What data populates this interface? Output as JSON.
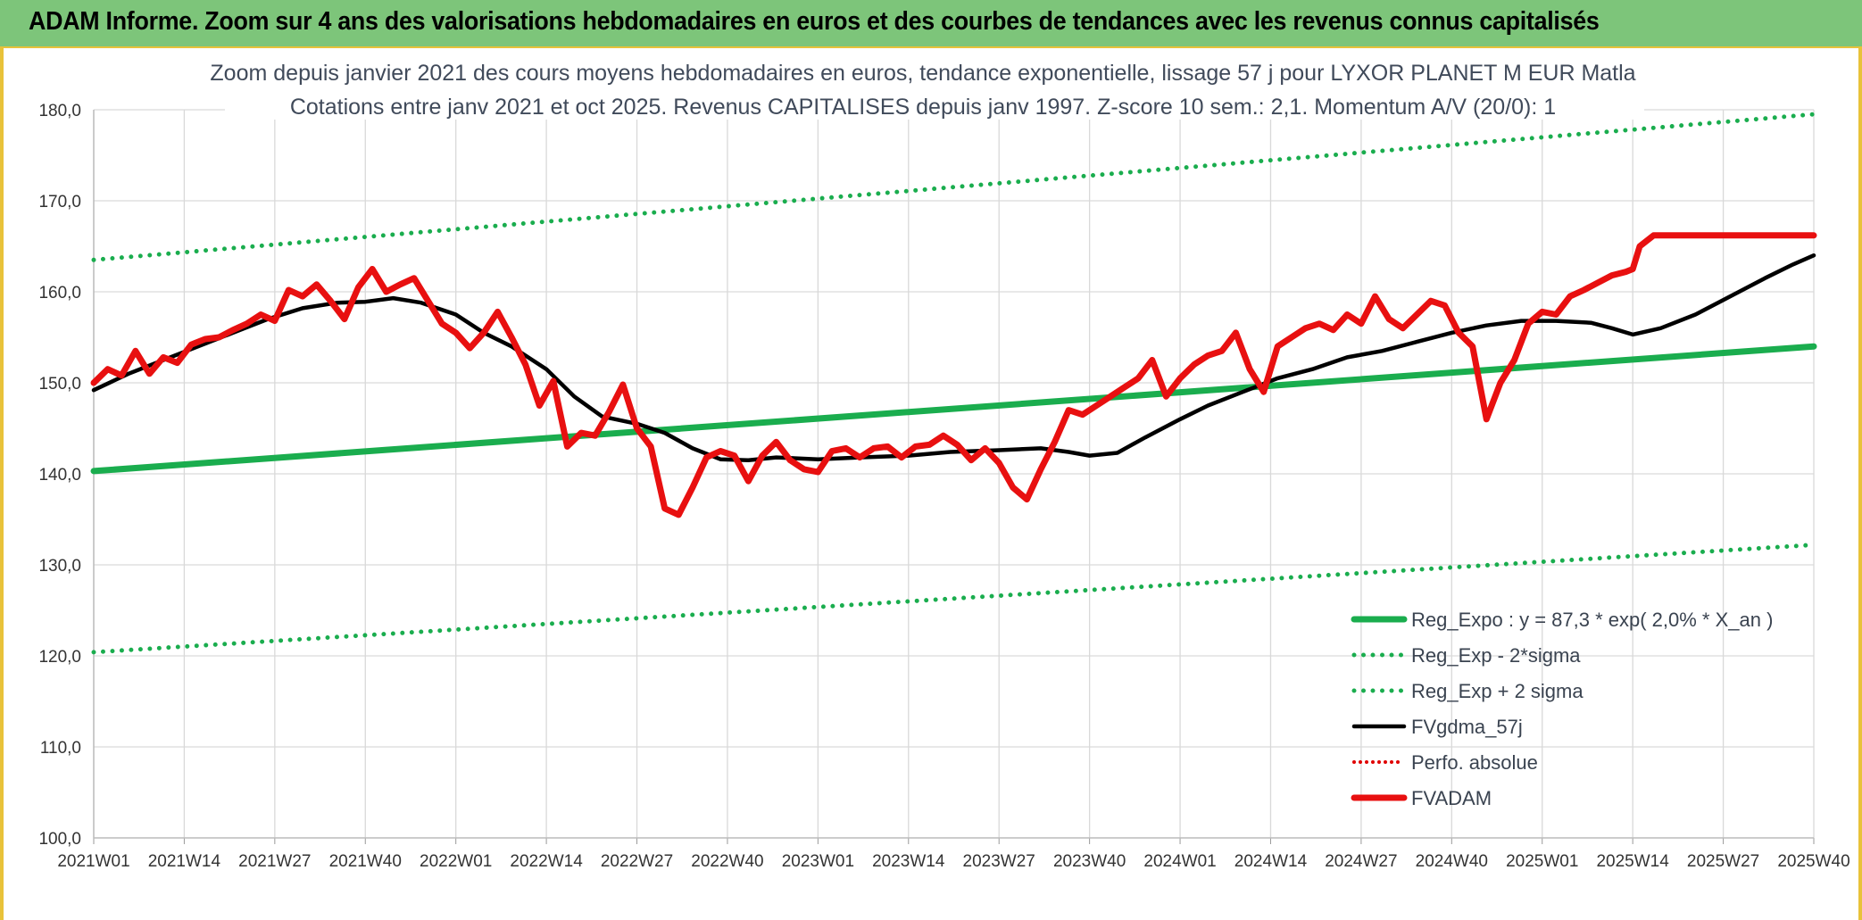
{
  "banner": {
    "title": "ADAM Informe. Zoom sur 4 ans des valorisations hebdomadaires en euros et des courbes de tendances avec les revenus connus capitalisés"
  },
  "colors": {
    "banner_bg": "#7dc57a",
    "reg_expo": "#1aad4e",
    "sigma_band": "#1aad4e",
    "moving_average": "#000000",
    "perfo_absolue": "#e00000",
    "fvadam": "#e81010"
  },
  "chart_data": {
    "type": "line",
    "title": "Zoom depuis janvier 2021 des cours moyens hebdomadaires en euros, tendance exponentielle, lissage 57 j pour LYXOR PLANET M EUR Matla",
    "subtitle": "Cotations entre janv 2021 et oct 2025. Revenus CAPITALISES depuis janv 1997. Z-score 10 sem.: 2,1. Momentum A/V (20/0): 1",
    "xlabel": "",
    "ylabel": "",
    "ylim": [
      100,
      180
    ],
    "yticks": [
      "100,0",
      "110,0",
      "120,0",
      "130,0",
      "140,0",
      "150,0",
      "160,0",
      "170,0",
      "180,0"
    ],
    "ytick_values": [
      100,
      110,
      120,
      130,
      140,
      150,
      160,
      170,
      180
    ],
    "xlim": [
      0,
      247
    ],
    "x_tick_labels": [
      "2021W01",
      "2021W14",
      "2021W27",
      "2021W40",
      "2022W01",
      "2022W14",
      "2022W27",
      "2022W40",
      "2023W01",
      "2023W14",
      "2023W27",
      "2023W40",
      "2024W01",
      "2024W14",
      "2024W27",
      "2024W40",
      "2025W01",
      "2025W14",
      "2025W27",
      "2025W40"
    ],
    "x_tick_values": [
      0,
      13,
      26,
      39,
      52,
      65,
      78,
      91,
      104,
      117,
      130,
      143,
      156,
      169,
      182,
      195,
      208,
      221,
      234,
      247
    ],
    "grid": true,
    "legend_position": "bottom-right",
    "series": [
      {
        "name": "Reg_Expo : y = 87,3 * exp( 2,0% *  X_an )",
        "style": "solid-thick",
        "x": [
          0,
          247
        ],
        "values": [
          140.3,
          154.0
        ]
      },
      {
        "name": "Reg_Exp - 2*sigma",
        "style": "dotted",
        "x": [
          0,
          247
        ],
        "values": [
          120.4,
          132.2
        ]
      },
      {
        "name": "Reg_Exp + 2 sigma",
        "style": "dotted",
        "x": [
          0,
          247
        ],
        "values": [
          163.5,
          179.5
        ]
      },
      {
        "name": "FVgdma_57j",
        "style": "solid",
        "x": [
          0,
          5,
          10,
          15,
          20,
          25,
          30,
          35,
          39,
          43,
          47,
          52,
          56,
          60,
          65,
          69,
          73,
          78,
          82,
          86,
          90,
          94,
          98,
          104,
          110,
          117,
          123,
          130,
          136,
          140,
          143,
          147,
          151,
          156,
          160,
          165,
          170,
          175,
          180,
          185,
          190,
          195,
          200,
          205,
          210,
          215,
          218,
          221,
          225,
          230,
          235,
          240,
          244,
          247
        ],
        "values": [
          149.2,
          151.0,
          152.5,
          154.0,
          155.5,
          157.0,
          158.2,
          158.8,
          158.9,
          159.3,
          158.8,
          157.5,
          155.5,
          154.0,
          151.5,
          148.5,
          146.3,
          145.5,
          144.5,
          142.8,
          141.6,
          141.5,
          141.8,
          141.6,
          141.8,
          142.0,
          142.4,
          142.6,
          142.8,
          142.4,
          142.0,
          142.3,
          144.0,
          146.0,
          147.5,
          149.0,
          150.5,
          151.5,
          152.8,
          153.5,
          154.5,
          155.5,
          156.3,
          156.8,
          156.8,
          156.6,
          156.0,
          155.3,
          156.0,
          157.5,
          159.5,
          161.5,
          163.0,
          164.0
        ]
      },
      {
        "name": "Perfo. absolue",
        "style": "dotted-red",
        "x": [],
        "values": []
      },
      {
        "name": "FVADAM",
        "style": "solid-thick-red",
        "x": [
          0,
          2,
          4,
          6,
          8,
          10,
          12,
          14,
          16,
          18,
          20,
          22,
          24,
          26,
          28,
          30,
          32,
          34,
          36,
          38,
          40,
          42,
          44,
          46,
          48,
          50,
          52,
          54,
          56,
          58,
          60,
          62,
          64,
          66,
          68,
          70,
          72,
          74,
          76,
          78,
          80,
          82,
          84,
          86,
          88,
          90,
          92,
          94,
          96,
          98,
          100,
          102,
          104,
          106,
          108,
          110,
          112,
          114,
          116,
          118,
          120,
          122,
          124,
          126,
          128,
          130,
          132,
          134,
          136,
          138,
          140,
          142,
          144,
          146,
          148,
          150,
          152,
          154,
          156,
          158,
          160,
          162,
          164,
          166,
          168,
          170,
          172,
          174,
          176,
          178,
          180,
          182,
          184,
          186,
          188,
          190,
          192,
          194,
          196,
          198,
          200,
          202,
          204,
          206,
          208,
          210,
          212,
          214,
          216,
          218,
          220,
          221,
          222,
          224,
          226,
          228,
          230,
          232,
          234,
          236,
          238,
          240,
          242,
          244,
          246,
          247
        ],
        "values": [
          150.0,
          151.5,
          150.8,
          153.5,
          151.0,
          152.8,
          152.2,
          154.2,
          154.8,
          155.0,
          155.8,
          156.5,
          157.5,
          156.8,
          160.2,
          159.5,
          160.8,
          159.0,
          157.0,
          160.5,
          162.5,
          160.0,
          160.8,
          161.5,
          159.0,
          156.5,
          155.5,
          153.8,
          155.5,
          157.8,
          155.0,
          152.0,
          147.5,
          150.2,
          143.0,
          144.5,
          144.2,
          146.8,
          149.8,
          145.0,
          143.0,
          136.2,
          135.5,
          138.5,
          141.8,
          142.5,
          142.0,
          139.2,
          142.0,
          143.5,
          141.5,
          140.5,
          140.2,
          142.5,
          142.8,
          141.8,
          142.8,
          143.0,
          141.8,
          143.0,
          143.2,
          144.2,
          143.2,
          141.5,
          142.8,
          141.2,
          138.5,
          137.2,
          140.5,
          143.5,
          147.0,
          146.5,
          147.5,
          148.5,
          149.5,
          150.5,
          152.5,
          148.5,
          150.5,
          152.0,
          153.0,
          153.5,
          155.5,
          151.5,
          149.0,
          154.0,
          155.0,
          156.0,
          156.5,
          155.8,
          157.5,
          156.5,
          159.5,
          157.0,
          156.0,
          157.5,
          159.0,
          158.5,
          155.5,
          154.0,
          146.0,
          150.0,
          152.5,
          156.5,
          157.8,
          157.5,
          159.5,
          160.2,
          161.0,
          161.8,
          162.2,
          162.5,
          165.0,
          166.2,
          166.2,
          166.2,
          166.2,
          166.2,
          166.2,
          166.2,
          166.2,
          166.2,
          166.2,
          166.2,
          166.2,
          166.2
        ]
      }
    ]
  }
}
